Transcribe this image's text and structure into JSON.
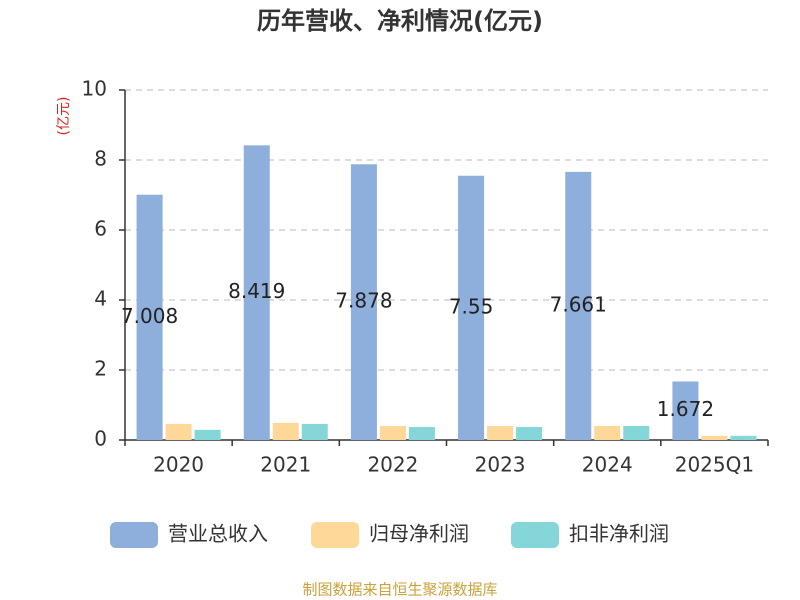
{
  "chart_data": {
    "type": "bar",
    "title": "历年营收、净利情况(亿元)",
    "y_label": "(亿元)",
    "categories": [
      "2020",
      "2021",
      "2022",
      "2023",
      "2024",
      "2025Q1"
    ],
    "series": [
      {
        "name": "营业总收入",
        "color": "#8eaedb",
        "values": [
          7.008,
          8.419,
          7.878,
          7.55,
          7.661,
          1.672
        ],
        "show_labels": true
      },
      {
        "name": "归母净利润",
        "color": "#fdd898",
        "values": [
          0.46,
          0.49,
          0.4,
          0.4,
          0.4,
          0.12
        ]
      },
      {
        "name": "扣非净利润",
        "color": "#85d6d8",
        "values": [
          0.29,
          0.46,
          0.37,
          0.37,
          0.4,
          0.12
        ]
      }
    ],
    "ylim": [
      0,
      10
    ],
    "yticks": [
      0,
      2,
      4,
      6,
      8,
      10
    ],
    "grid": true,
    "source": "制图数据来自恒生聚源数据库"
  }
}
